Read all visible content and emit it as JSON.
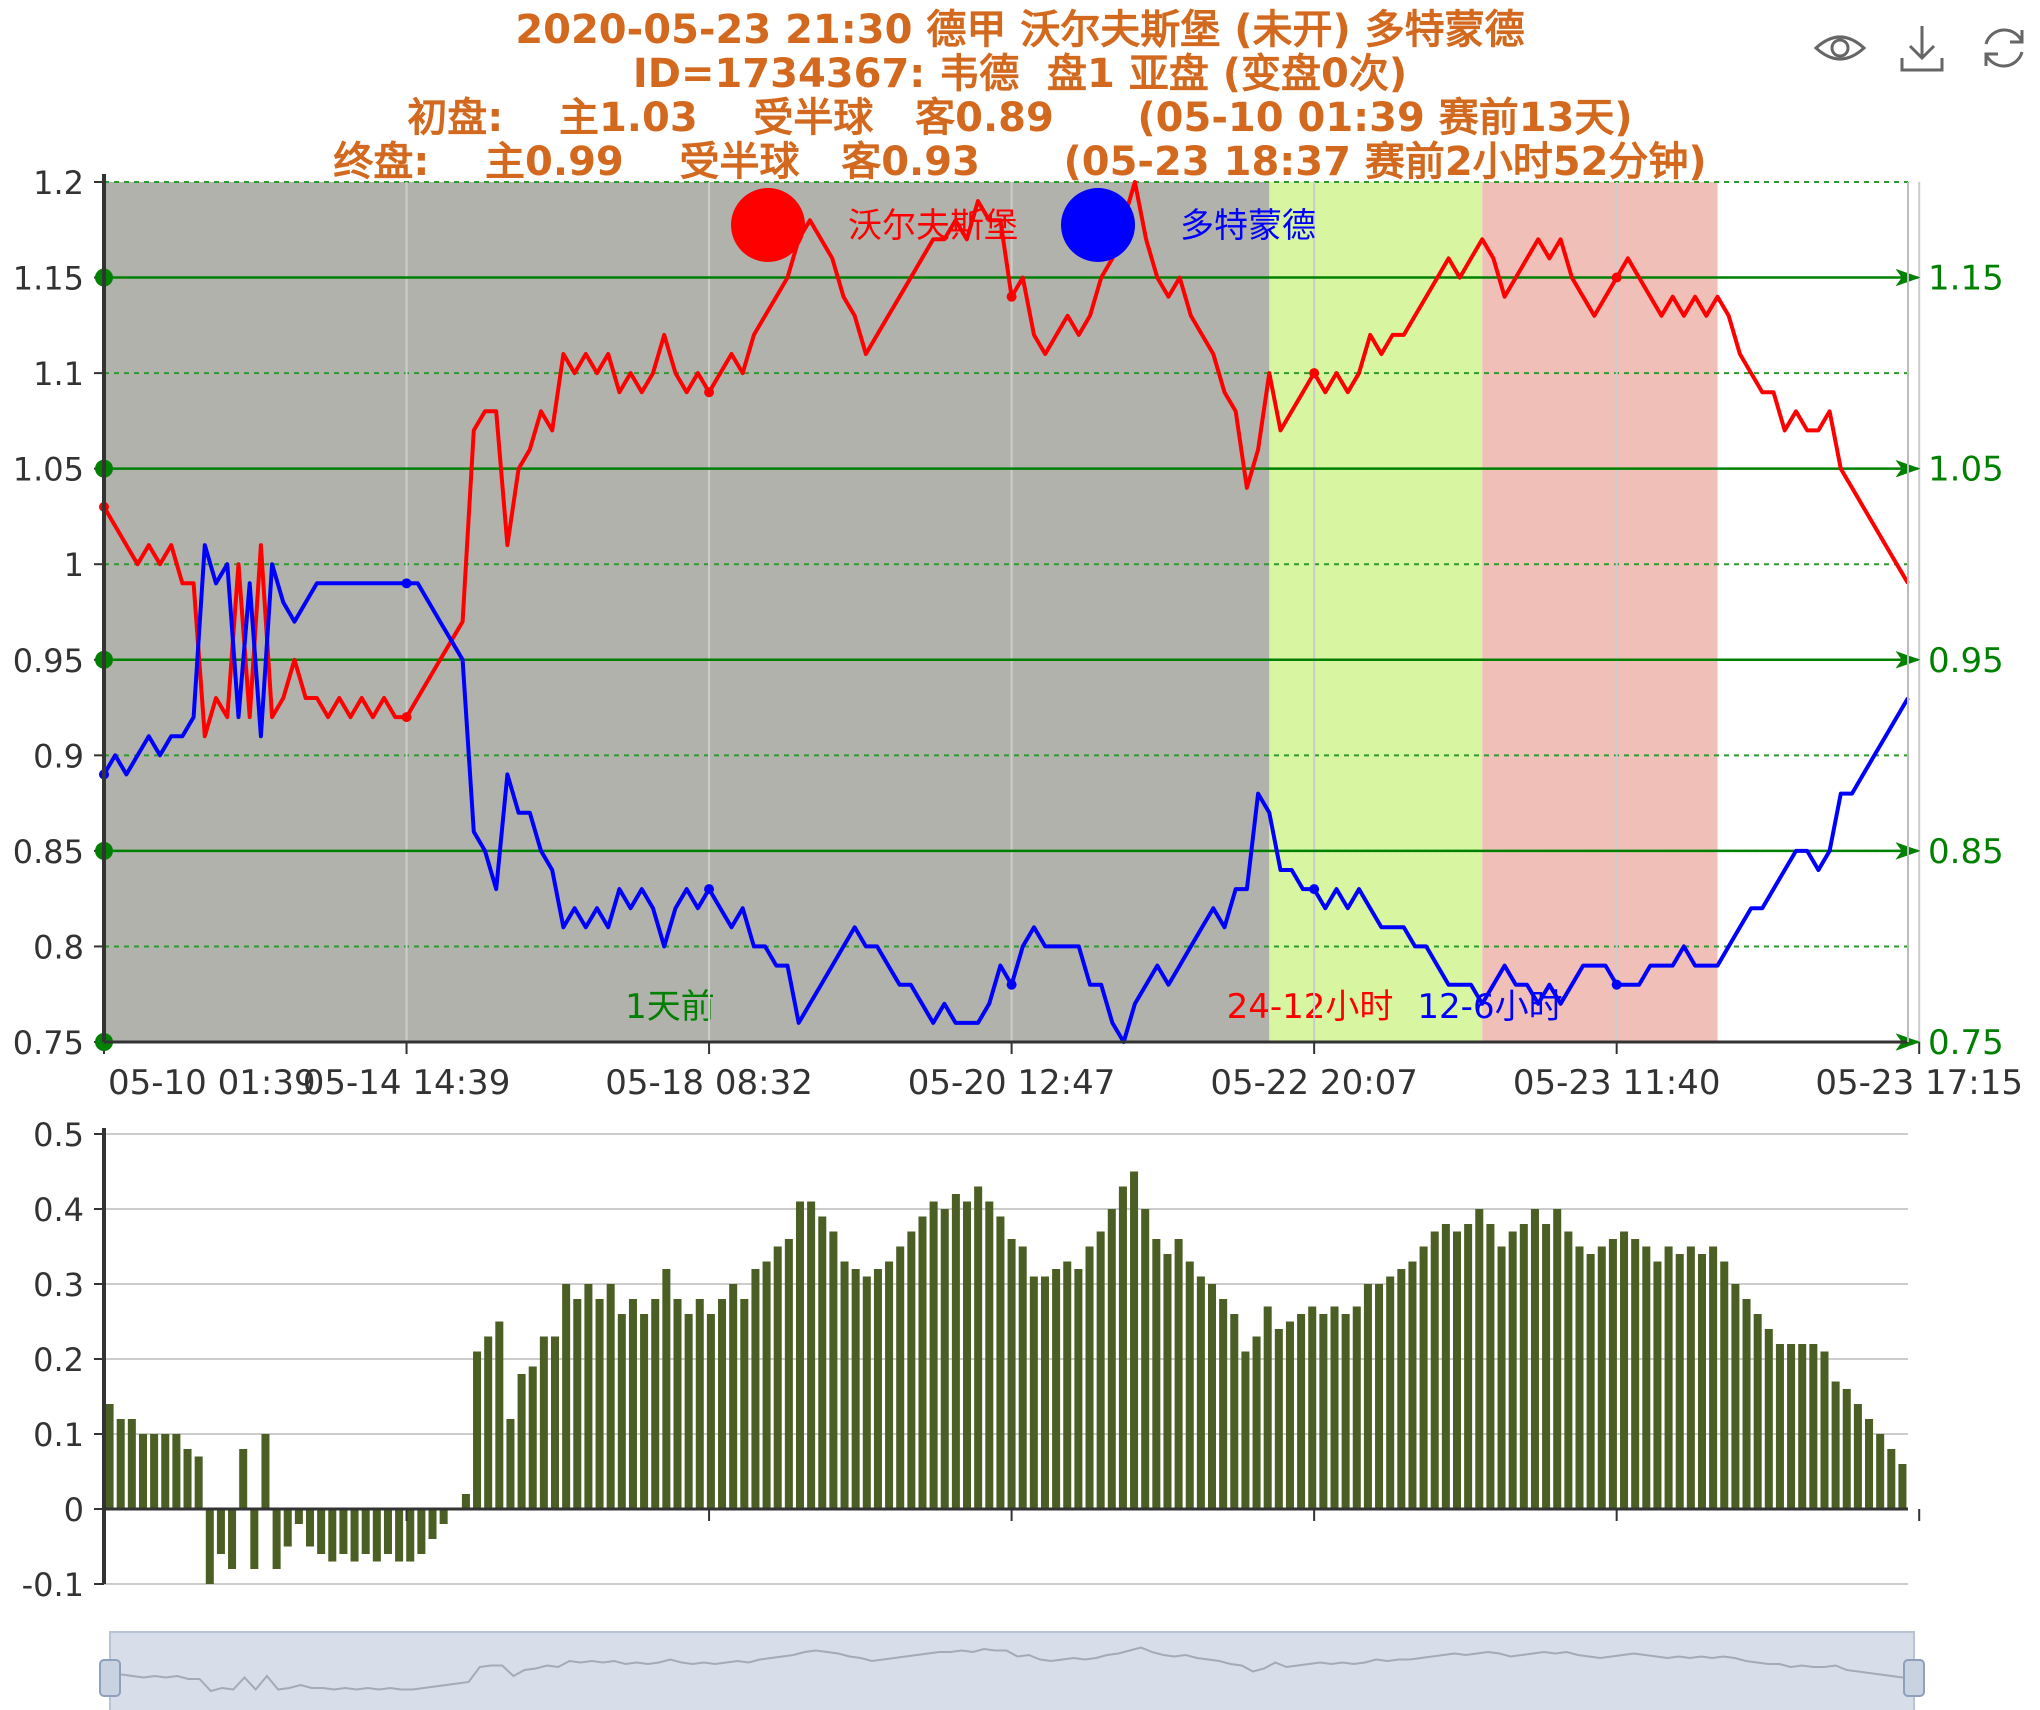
{
  "title": {
    "line1": "2020-05-23 21:30 德甲 沃尔夫斯堡 (未开) 多特蒙德",
    "line2": "ID=1734367: 韦德  盘1 亚盘 (变盘0次)",
    "line3": "初盘:    主1.03    受半球   客0.89      (05-10 01:39 赛前13天)",
    "line4": "终盘:    主0.99    受半球   客0.93      (05-23 18:37 赛前2小时52分钟)"
  },
  "toolbox": {
    "icons": [
      "eye-icon",
      "download-icon",
      "refresh-icon"
    ]
  },
  "chart_data": [
    {
      "type": "line",
      "ylim": [
        0.75,
        1.2
      ],
      "y_ticks": [
        "1.2",
        "1.15",
        "1.1",
        "1.05",
        "1",
        "0.95",
        "0.9",
        "0.85",
        "0.8",
        "0.75"
      ],
      "x_ticks": [
        "05-10 01:39",
        "05-14 14:39",
        "05-18 08:32",
        "05-20 12:47",
        "05-22 20:07",
        "05-23 11:40",
        "05-23 17:15"
      ],
      "legend": [
        {
          "name": "沃尔夫斯堡",
          "color": "#ff0000"
        },
        {
          "name": "多特蒙德",
          "color": "#0000ff"
        }
      ],
      "mark_lines": [
        {
          "value": 1.15,
          "label": "1.15"
        },
        {
          "value": 1.05,
          "label": "1.05"
        },
        {
          "value": 0.95,
          "label": "0.95"
        },
        {
          "value": 0.85,
          "label": "0.85"
        },
        {
          "value": 0.75,
          "label": "0.75"
        }
      ],
      "mark_areas": [
        {
          "label": "1天前",
          "color": "#b2b2ac",
          "label_color": "#008000"
        },
        {
          "label": "24-12小时",
          "color": "#d8f5a2",
          "label_color": "#ff0000"
        },
        {
          "label": "12-6小时",
          "color": "#f0c0b8",
          "label_color": "#0000ff"
        }
      ],
      "series": [
        {
          "name": "沃尔夫斯堡",
          "color": "#ff0000",
          "values": [
            1.03,
            1.02,
            1.01,
            1.0,
            1.01,
            1.0,
            1.01,
            0.99,
            0.99,
            0.91,
            0.93,
            0.92,
            1.0,
            0.92,
            1.01,
            0.92,
            0.93,
            0.95,
            0.93,
            0.93,
            0.92,
            0.93,
            0.92,
            0.93,
            0.92,
            0.93,
            0.92,
            0.92,
            0.93,
            0.94,
            0.95,
            0.96,
            0.97,
            1.07,
            1.08,
            1.08,
            1.01,
            1.05,
            1.06,
            1.08,
            1.07,
            1.11,
            1.1,
            1.11,
            1.1,
            1.11,
            1.09,
            1.1,
            1.09,
            1.1,
            1.12,
            1.1,
            1.09,
            1.1,
            1.09,
            1.1,
            1.11,
            1.1,
            1.12,
            1.13,
            1.14,
            1.15,
            1.17,
            1.18,
            1.17,
            1.16,
            1.14,
            1.13,
            1.11,
            1.12,
            1.13,
            1.14,
            1.15,
            1.16,
            1.17,
            1.17,
            1.18,
            1.17,
            1.19,
            1.18,
            1.18,
            1.14,
            1.15,
            1.12,
            1.11,
            1.12,
            1.13,
            1.12,
            1.13,
            1.15,
            1.16,
            1.18,
            1.2,
            1.17,
            1.15,
            1.14,
            1.15,
            1.13,
            1.12,
            1.11,
            1.09,
            1.08,
            1.04,
            1.06,
            1.1,
            1.07,
            1.08,
            1.09,
            1.1,
            1.09,
            1.1,
            1.09,
            1.1,
            1.12,
            1.11,
            1.12,
            1.12,
            1.13,
            1.14,
            1.15,
            1.16,
            1.15,
            1.16,
            1.17,
            1.16,
            1.14,
            1.15,
            1.16,
            1.17,
            1.16,
            1.17,
            1.15,
            1.14,
            1.13,
            1.14,
            1.15,
            1.16,
            1.15,
            1.14,
            1.13,
            1.14,
            1.13,
            1.14,
            1.13,
            1.14,
            1.13,
            1.11,
            1.1,
            1.09,
            1.09,
            1.07,
            1.08,
            1.07,
            1.07,
            1.08,
            1.05,
            1.04,
            1.03,
            1.02,
            1.01,
            1.0,
            0.99
          ]
        },
        {
          "name": "多特蒙德",
          "color": "#0000ff",
          "values": [
            0.89,
            0.9,
            0.89,
            0.9,
            0.91,
            0.9,
            0.91,
            0.91,
            0.92,
            1.01,
            0.99,
            1.0,
            0.92,
            0.99,
            0.91,
            1.0,
            0.98,
            0.97,
            0.98,
            0.99,
            0.99,
            0.99,
            0.99,
            0.99,
            0.99,
            0.99,
            0.99,
            0.99,
            0.99,
            0.98,
            0.97,
            0.96,
            0.95,
            0.86,
            0.85,
            0.83,
            0.89,
            0.87,
            0.87,
            0.85,
            0.84,
            0.81,
            0.82,
            0.81,
            0.82,
            0.81,
            0.83,
            0.82,
            0.83,
            0.82,
            0.8,
            0.82,
            0.83,
            0.82,
            0.83,
            0.82,
            0.81,
            0.82,
            0.8,
            0.8,
            0.79,
            0.79,
            0.76,
            0.77,
            0.78,
            0.79,
            0.8,
            0.81,
            0.8,
            0.8,
            0.79,
            0.78,
            0.78,
            0.77,
            0.76,
            0.77,
            0.76,
            0.76,
            0.76,
            0.77,
            0.79,
            0.78,
            0.8,
            0.81,
            0.8,
            0.8,
            0.8,
            0.8,
            0.78,
            0.78,
            0.76,
            0.75,
            0.77,
            0.78,
            0.79,
            0.78,
            0.79,
            0.8,
            0.81,
            0.82,
            0.81,
            0.83,
            0.83,
            0.88,
            0.87,
            0.84,
            0.84,
            0.83,
            0.83,
            0.82,
            0.83,
            0.82,
            0.83,
            0.82,
            0.81,
            0.81,
            0.81,
            0.8,
            0.8,
            0.79,
            0.78,
            0.78,
            0.78,
            0.77,
            0.78,
            0.79,
            0.78,
            0.78,
            0.77,
            0.78,
            0.77,
            0.78,
            0.79,
            0.79,
            0.79,
            0.78,
            0.78,
            0.78,
            0.79,
            0.79,
            0.79,
            0.8,
            0.79,
            0.79,
            0.79,
            0.8,
            0.81,
            0.82,
            0.82,
            0.83,
            0.84,
            0.85,
            0.85,
            0.84,
            0.85,
            0.88,
            0.88,
            0.89,
            0.9,
            0.91,
            0.92,
            0.93
          ]
        }
      ]
    },
    {
      "type": "bar",
      "ylim": [
        -0.1,
        0.5
      ],
      "y_ticks": [
        "0.5",
        "0.4",
        "0.3",
        "0.2",
        "0.1",
        "0",
        "-0.1"
      ],
      "color": "#4b5e23",
      "values": [
        0.14,
        0.12,
        0.12,
        0.1,
        0.1,
        0.1,
        0.1,
        0.08,
        0.07,
        -0.1,
        -0.06,
        -0.08,
        0.08,
        -0.08,
        0.1,
        -0.08,
        -0.05,
        -0.02,
        -0.05,
        -0.06,
        -0.07,
        -0.06,
        -0.07,
        -0.06,
        -0.07,
        -0.06,
        -0.07,
        -0.07,
        -0.06,
        -0.04,
        -0.02,
        0.0,
        0.02,
        0.21,
        0.23,
        0.25,
        0.12,
        0.18,
        0.19,
        0.23,
        0.23,
        0.3,
        0.28,
        0.3,
        0.28,
        0.3,
        0.26,
        0.28,
        0.26,
        0.28,
        0.32,
        0.28,
        0.26,
        0.28,
        0.26,
        0.28,
        0.3,
        0.28,
        0.32,
        0.33,
        0.35,
        0.36,
        0.41,
        0.41,
        0.39,
        0.37,
        0.33,
        0.32,
        0.31,
        0.32,
        0.33,
        0.35,
        0.37,
        0.39,
        0.41,
        0.4,
        0.42,
        0.41,
        0.43,
        0.41,
        0.39,
        0.36,
        0.35,
        0.31,
        0.31,
        0.32,
        0.33,
        0.32,
        0.35,
        0.37,
        0.4,
        0.43,
        0.45,
        0.4,
        0.36,
        0.34,
        0.36,
        0.33,
        0.31,
        0.3,
        0.28,
        0.26,
        0.21,
        0.23,
        0.27,
        0.24,
        0.25,
        0.26,
        0.27,
        0.26,
        0.27,
        0.26,
        0.27,
        0.3,
        0.3,
        0.31,
        0.32,
        0.33,
        0.35,
        0.37,
        0.38,
        0.37,
        0.38,
        0.4,
        0.38,
        0.35,
        0.37,
        0.38,
        0.4,
        0.38,
        0.4,
        0.37,
        0.35,
        0.34,
        0.35,
        0.36,
        0.37,
        0.36,
        0.35,
        0.33,
        0.35,
        0.34,
        0.35,
        0.34,
        0.35,
        0.33,
        0.3,
        0.28,
        0.26,
        0.24,
        0.22,
        0.22,
        0.22,
        0.22,
        0.21,
        0.17,
        0.16,
        0.14,
        0.12,
        0.1,
        0.08,
        0.06
      ]
    }
  ]
}
